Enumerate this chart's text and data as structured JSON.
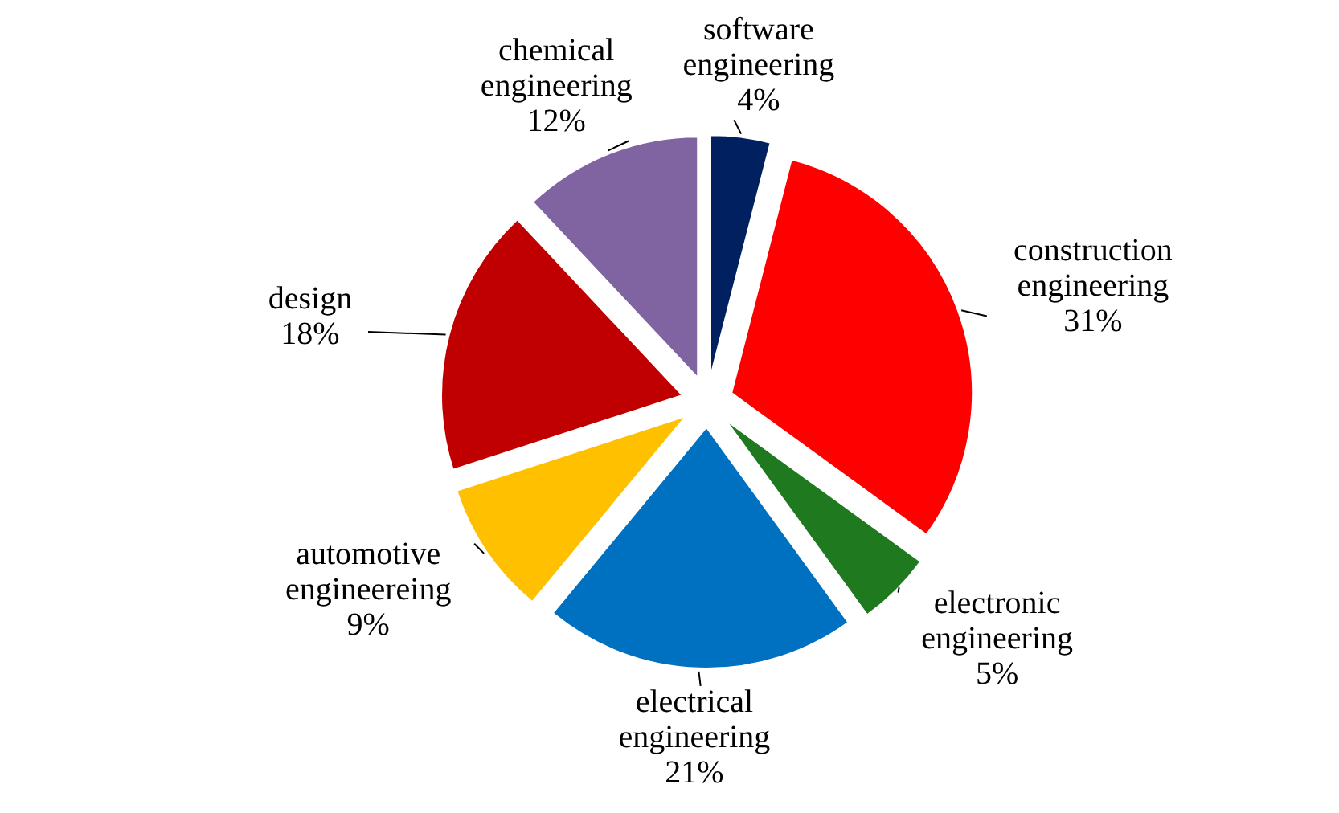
{
  "chart_data": {
    "type": "pie",
    "categories": [
      "software engineering",
      "construction engineering",
      "electronic engineering",
      "electrical engineering",
      "automotive engineereing",
      "design",
      "chemical engineering"
    ],
    "values": [
      4,
      31,
      5,
      21,
      9,
      18,
      12
    ],
    "colors": [
      "#002060",
      "#ff0000",
      "#1f7a1f",
      "#0070c0",
      "#ffc000",
      "#c00000",
      "#8064a2"
    ],
    "value_labels": [
      "4%",
      "31%",
      "5%",
      "21%",
      "9%",
      "18%",
      "12%"
    ]
  }
}
